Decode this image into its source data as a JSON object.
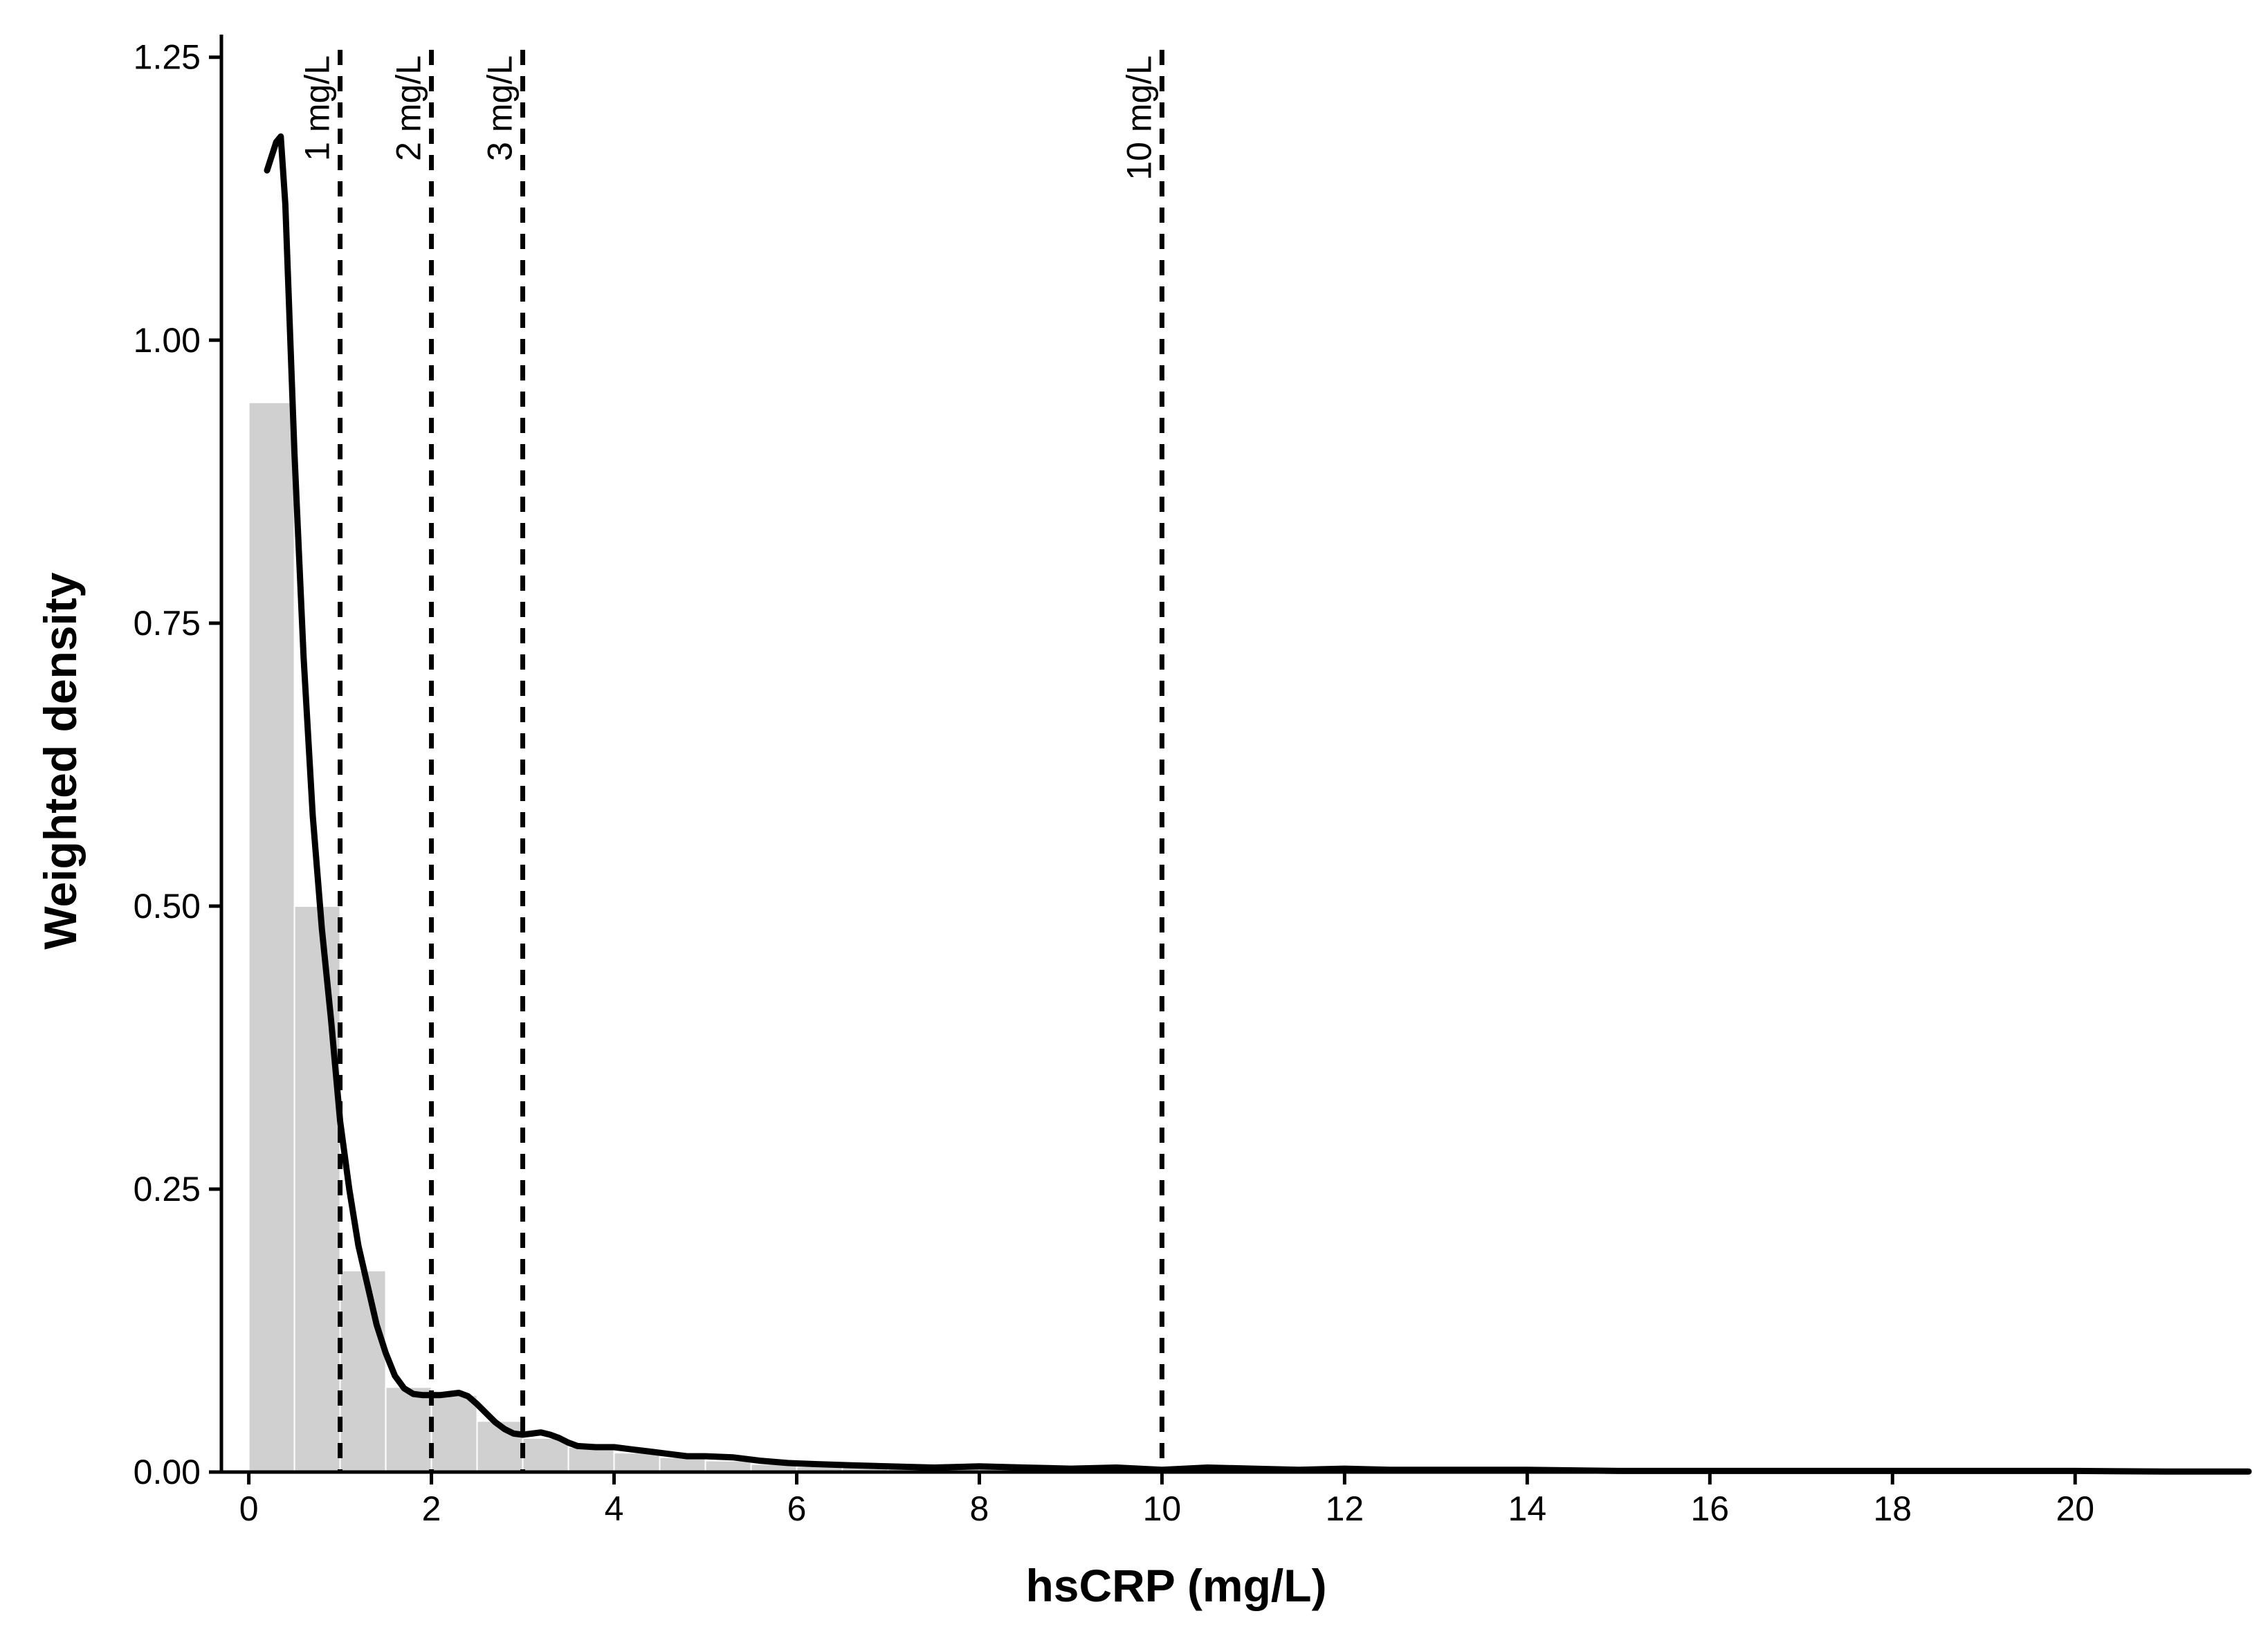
{
  "chart_data": {
    "type": "bar",
    "title": "",
    "xlabel": "hsCRP (mg/L)",
    "ylabel": "Weighted density",
    "xlim": [
      -0.3,
      21.9
    ],
    "ylim": [
      0,
      1.27
    ],
    "x_ticks": [
      {
        "value": 0,
        "label": "0"
      },
      {
        "value": 2,
        "label": "2"
      },
      {
        "value": 4,
        "label": "4"
      },
      {
        "value": 6,
        "label": "6"
      },
      {
        "value": 8,
        "label": "8"
      },
      {
        "value": 10,
        "label": "10"
      },
      {
        "value": 12,
        "label": "12"
      },
      {
        "value": 14,
        "label": "14"
      },
      {
        "value": 16,
        "label": "16"
      },
      {
        "value": 18,
        "label": "18"
      },
      {
        "value": 20,
        "label": "20"
      }
    ],
    "y_ticks": [
      {
        "value": 0,
        "label": "0.00"
      },
      {
        "value": 0.25,
        "label": "0.25"
      },
      {
        "value": 0.5,
        "label": "0.50"
      },
      {
        "value": 0.75,
        "label": "0.75"
      },
      {
        "value": 1.0,
        "label": "1.00"
      },
      {
        "value": 1.25,
        "label": "1.25"
      }
    ],
    "histogram": {
      "bin_width": 0.5,
      "color": "#d0d0d0",
      "bins": [
        {
          "x0": 0.0,
          "value": 0.945
        },
        {
          "x0": 0.5,
          "value": 0.5
        },
        {
          "x0": 1.0,
          "value": 0.178
        },
        {
          "x0": 1.5,
          "value": 0.075
        },
        {
          "x0": 2.0,
          "value": 0.068
        },
        {
          "x0": 2.5,
          "value": 0.045
        },
        {
          "x0": 3.0,
          "value": 0.03
        },
        {
          "x0": 3.5,
          "value": 0.022
        },
        {
          "x0": 4.0,
          "value": 0.017
        },
        {
          "x0": 4.5,
          "value": 0.013
        },
        {
          "x0": 5.0,
          "value": 0.01
        },
        {
          "x0": 5.5,
          "value": 0.007
        },
        {
          "x0": 6.0,
          "value": 0.005
        },
        {
          "x0": 6.5,
          "value": 0.004
        },
        {
          "x0": 7.0,
          "value": 0.003
        },
        {
          "x0": 7.5,
          "value": 0.003
        },
        {
          "x0": 8.0,
          "value": 0.003
        },
        {
          "x0": 8.5,
          "value": 0.002
        },
        {
          "x0": 9.0,
          "value": 0.002
        },
        {
          "x0": 9.5,
          "value": 0.002
        },
        {
          "x0": 10.0,
          "value": 0.002
        },
        {
          "x0": 10.5,
          "value": 0.002
        },
        {
          "x0": 11.0,
          "value": 0.001
        },
        {
          "x0": 11.5,
          "value": 0.002
        },
        {
          "x0": 12.0,
          "value": 0.001
        },
        {
          "x0": 12.5,
          "value": 0.001
        },
        {
          "x0": 13.0,
          "value": 0.001
        },
        {
          "x0": 13.5,
          "value": 0.001
        },
        {
          "x0": 14.0,
          "value": 0.001
        },
        {
          "x0": 14.5,
          "value": 0.001
        },
        {
          "x0": 15.0,
          "value": 0.001
        },
        {
          "x0": 15.5,
          "value": 0.001
        },
        {
          "x0": 16.0,
          "value": 0.001
        },
        {
          "x0": 16.5,
          "value": 0.001
        },
        {
          "x0": 17.0,
          "value": 0.001
        },
        {
          "x0": 17.5,
          "value": 0.001
        },
        {
          "x0": 18.0,
          "value": 0.001
        },
        {
          "x0": 18.5,
          "value": 0.001
        },
        {
          "x0": 19.0,
          "value": 0.001
        },
        {
          "x0": 19.5,
          "value": 0.001
        },
        {
          "x0": 20.0,
          "value": 0.001
        },
        {
          "x0": 20.5,
          "value": 0.001
        },
        {
          "x0": 21.0,
          "value": 0.001
        },
        {
          "x0": 21.5,
          "value": 0.001
        }
      ]
    },
    "density_curve": {
      "color": "#000000",
      "points": [
        [
          0.2,
          1.15
        ],
        [
          0.3,
          1.175
        ],
        [
          0.35,
          1.18
        ],
        [
          0.4,
          1.12
        ],
        [
          0.5,
          0.9
        ],
        [
          0.6,
          0.72
        ],
        [
          0.7,
          0.58
        ],
        [
          0.8,
          0.48
        ],
        [
          0.9,
          0.4
        ],
        [
          1.0,
          0.31
        ],
        [
          1.1,
          0.25
        ],
        [
          1.2,
          0.2
        ],
        [
          1.3,
          0.165
        ],
        [
          1.4,
          0.13
        ],
        [
          1.5,
          0.105
        ],
        [
          1.6,
          0.085
        ],
        [
          1.7,
          0.074
        ],
        [
          1.8,
          0.069
        ],
        [
          1.9,
          0.068
        ],
        [
          2.0,
          0.068
        ],
        [
          2.1,
          0.068
        ],
        [
          2.2,
          0.069
        ],
        [
          2.3,
          0.07
        ],
        [
          2.4,
          0.067
        ],
        [
          2.5,
          0.06
        ],
        [
          2.6,
          0.052
        ],
        [
          2.7,
          0.044
        ],
        [
          2.8,
          0.038
        ],
        [
          2.9,
          0.034
        ],
        [
          3.0,
          0.033
        ],
        [
          3.1,
          0.034
        ],
        [
          3.2,
          0.035
        ],
        [
          3.3,
          0.033
        ],
        [
          3.4,
          0.03
        ],
        [
          3.5,
          0.026
        ],
        [
          3.6,
          0.023
        ],
        [
          3.8,
          0.022
        ],
        [
          4.0,
          0.022
        ],
        [
          4.2,
          0.02
        ],
        [
          4.4,
          0.018
        ],
        [
          4.6,
          0.016
        ],
        [
          4.8,
          0.014
        ],
        [
          5.0,
          0.014
        ],
        [
          5.3,
          0.013
        ],
        [
          5.6,
          0.01
        ],
        [
          5.9,
          0.008
        ],
        [
          6.2,
          0.007
        ],
        [
          6.6,
          0.006
        ],
        [
          7.0,
          0.005
        ],
        [
          7.5,
          0.004
        ],
        [
          8.0,
          0.005
        ],
        [
          8.5,
          0.004
        ],
        [
          9.0,
          0.003
        ],
        [
          9.5,
          0.004
        ],
        [
          10.0,
          0.002
        ],
        [
          10.5,
          0.004
        ],
        [
          11.0,
          0.003
        ],
        [
          11.5,
          0.002
        ],
        [
          12.0,
          0.003
        ],
        [
          12.5,
          0.002
        ],
        [
          13.0,
          0.002
        ],
        [
          14.0,
          0.002
        ],
        [
          15.0,
          0.001
        ],
        [
          16.0,
          0.001
        ],
        [
          17.0,
          0.001
        ],
        [
          18.0,
          0.001
        ],
        [
          19.0,
          0.001
        ],
        [
          20.0,
          0.001
        ],
        [
          21.0,
          0.0005
        ],
        [
          21.9,
          0.0005
        ]
      ]
    },
    "reference_lines": [
      {
        "x": 1,
        "label": "1 mg/L"
      },
      {
        "x": 2,
        "label": "2 mg/L"
      },
      {
        "x": 3,
        "label": "3 mg/L"
      },
      {
        "x": 10,
        "label": "10 mg/L"
      }
    ],
    "grid": false,
    "legend": "none"
  }
}
